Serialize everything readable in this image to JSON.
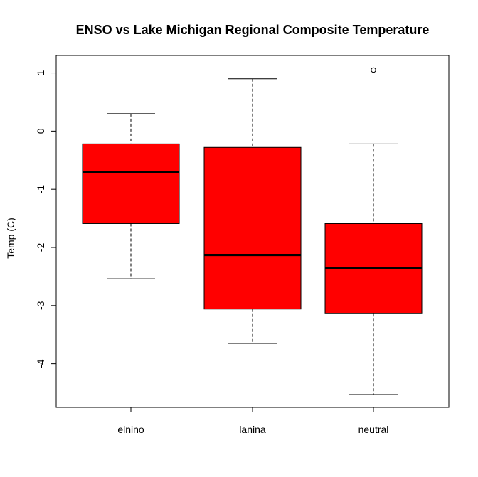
{
  "chart_data": {
    "type": "boxplot",
    "title": "ENSO vs Lake Michigan Regional Composite Temperature",
    "xlabel": "",
    "ylabel": "Temp (C)",
    "categories": [
      "elnino",
      "lanina",
      "neutral"
    ],
    "yticks": [
      "-4",
      "-3",
      "-2",
      "-1",
      "0",
      "1"
    ],
    "ylim": [
      -4.75,
      1.3
    ],
    "box_color": "#ff0000",
    "boxes": [
      {
        "category": "elnino",
        "whisker_low": -2.54,
        "q1": -1.59,
        "median": -0.7,
        "q3": -0.22,
        "whisker_high": 0.3,
        "outliers": []
      },
      {
        "category": "lanina",
        "whisker_low": -3.65,
        "q1": -3.06,
        "median": -2.13,
        "q3": -0.28,
        "whisker_high": 0.9,
        "outliers": []
      },
      {
        "category": "neutral",
        "whisker_low": -4.53,
        "q1": -3.14,
        "median": -2.35,
        "q3": -1.59,
        "whisker_high": -0.22,
        "outliers": [
          1.05
        ]
      }
    ]
  }
}
